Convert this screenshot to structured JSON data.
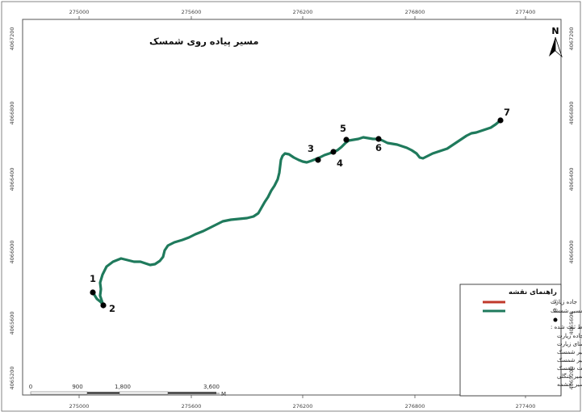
{
  "map": {
    "title": "مسیر پیاده روی شمسک",
    "north_label": "N",
    "colors": {
      "route": "#1f7a5c",
      "road": "#c0392b",
      "point": "#000000",
      "frame": "#555555"
    },
    "coords_top": [
      "275000",
      "275600",
      "276200",
      "276800",
      "277400"
    ],
    "coords_bottom": [
      "275000",
      "275600",
      "276200",
      "276800",
      "277400"
    ],
    "coords_left": [
      "4067200",
      "4066800",
      "4066400",
      "4066000",
      "4065600",
      "4065200"
    ],
    "coords_right": [
      "4067200",
      "4066800",
      "4066400",
      "4066000",
      "4065600",
      "4065200"
    ],
    "route_points": [
      {
        "label": "1"
      },
      {
        "label": "2"
      },
      {
        "label": "3"
      },
      {
        "label": "4"
      },
      {
        "label": "5"
      },
      {
        "label": "6"
      },
      {
        "label": "7"
      }
    ],
    "scale": {
      "labels": [
        "0",
        "900",
        "1,800",
        "3,600"
      ],
      "unit": "M"
    }
  },
  "legend": {
    "title": "راهنمای نقشه",
    "items": [
      {
        "num": "①",
        "label": "جاده زیارت",
        "color": "#c0392b"
      },
      {
        "num": "②",
        "label": "مسیر شمسک",
        "color": "#1f7a5c"
      }
    ],
    "points_header": "نقاط ثبت شده :",
    "points": [
      "1 ابتدای مسیر_جاده زیارت",
      "2 دید زیبای روستای زیارت",
      "3 شروع عرض کم مسیر شمسک",
      "4 دید زیبای مسیر شمسک",
      "5 دشت شمسک",
      "6 شروع مسیر جنگلی",
      "7 انتهای مسیر_چشمه"
    ]
  }
}
